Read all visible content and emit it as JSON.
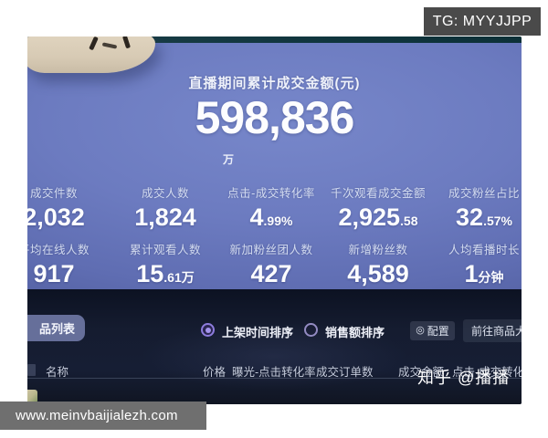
{
  "watermarks": {
    "tg": "TG: MYYJJPP",
    "site": "www.meinvbaijialezh.com",
    "zhihu": "知乎 @播播"
  },
  "dashboard": {
    "title": "直播期间累计成交金额(元)",
    "total_amount": "598,836",
    "total_unit": "万",
    "stats": [
      {
        "label": "成交件数",
        "main": "2,032",
        "sub": ""
      },
      {
        "label": "成交人数",
        "main": "1,824",
        "sub": ""
      },
      {
        "label": "点击-成交转化率",
        "main": "4",
        "sub": ".99%"
      },
      {
        "label": "千次观看成交金额",
        "main": "2,925",
        "sub": ".58"
      },
      {
        "label": "成交粉丝占比",
        "main": "32",
        "sub": ".57%"
      },
      {
        "label": "平均在线人数",
        "main": "917",
        "sub": ""
      },
      {
        "label": "累计观看人数",
        "main": "15",
        "sub": ".61万"
      },
      {
        "label": "新加粉丝团人数",
        "main": "427",
        "sub": ""
      },
      {
        "label": "新增粉丝数",
        "main": "4,589",
        "sub": ""
      },
      {
        "label": "人均看播时长",
        "main": "1",
        "sub": "分钟"
      }
    ]
  },
  "product_section": {
    "tab": "品列表",
    "sort_options": [
      {
        "label": "上架时间排序",
        "selected": true
      },
      {
        "label": "销售额排序",
        "selected": false
      }
    ],
    "config_icon_glyph": "◎",
    "config_button": "配置",
    "goto_button": "前往商品大",
    "table_headers": [
      "名称",
      "价格",
      "曝光-点击转化率",
      "成交订单数",
      "成交金额",
      "点击-成交转化"
    ]
  },
  "colors": {
    "screen_blue": "#6c7bc0",
    "panel_dark": "#151c30",
    "accent_purple": "#8d7cdd",
    "watermark_gray": "#4a4a4a",
    "site_gray": "#6f6f6f",
    "tab_bg": "#666f9a"
  }
}
